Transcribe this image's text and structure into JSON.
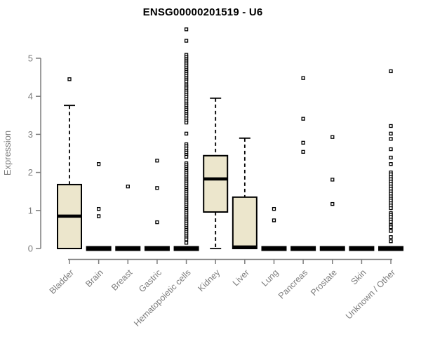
{
  "chart_data": {
    "type": "boxplot",
    "title": "ENSG00000201519 - U6",
    "ylabel": "Expression",
    "xlabel": "",
    "ylim": [
      0,
      5
    ],
    "yticks": [
      0,
      1,
      2,
      3,
      4,
      5
    ],
    "grid": false,
    "legend": "none",
    "colors": {
      "box_fill": "#ECE6CC",
      "box_border": "#000000",
      "median": "#000000",
      "axis": "#7D7D7D",
      "tick_label": "#7D7D7D",
      "title": "#000000",
      "outlier_fill": "#FFFFFF",
      "outlier_border": "#000000"
    },
    "categories": [
      {
        "label": "Bladder",
        "min": 0,
        "q1": 0,
        "median": 0.85,
        "q3": 1.68,
        "max": 3.76,
        "outliers": [
          4.45
        ]
      },
      {
        "label": "Brain",
        "min": 0,
        "q1": 0,
        "median": 0,
        "q3": 0,
        "max": 0,
        "outliers": [
          2.22,
          1.04,
          0.85
        ]
      },
      {
        "label": "Breast",
        "min": 0,
        "q1": 0,
        "median": 0,
        "q3": 0,
        "max": 0,
        "outliers": [
          1.63
        ]
      },
      {
        "label": "Gastric",
        "min": 0,
        "q1": 0,
        "median": 0,
        "q3": 0,
        "max": 0,
        "outliers": [
          2.31,
          1.59,
          0.69
        ]
      },
      {
        "label": "Hematopoietic cells",
        "min": 0,
        "q1": 0,
        "median": 0,
        "q3": 0,
        "max": 0,
        "outliers": [
          5.76,
          5.46,
          5.09,
          5.04,
          4.99,
          4.94,
          4.89,
          4.84,
          4.79,
          4.74,
          4.69,
          4.64,
          4.59,
          4.54,
          4.49,
          4.44,
          4.39,
          4.31,
          4.26,
          4.21,
          4.15,
          4.1,
          4.04,
          3.99,
          3.93,
          3.87,
          3.81,
          3.76,
          3.7,
          3.65,
          3.59,
          3.53,
          3.48,
          3.42,
          3.36,
          3.31,
          3.02,
          2.74,
          2.69,
          2.63,
          2.57,
          2.52,
          2.46,
          2.41,
          2.24,
          2.19,
          2.14,
          2.09,
          2.04,
          1.99,
          1.94,
          1.89,
          1.84,
          1.79,
          1.74,
          1.69,
          1.64,
          1.59,
          1.54,
          1.49,
          1.44,
          1.39,
          1.34,
          1.29,
          1.24,
          1.19,
          1.14,
          1.09,
          1.04,
          0.99,
          0.94,
          0.89,
          0.84,
          0.79,
          0.74,
          0.69,
          0.64,
          0.59,
          0.54,
          0.49,
          0.44,
          0.39,
          0.34,
          0.29,
          0.24,
          0.15
        ]
      },
      {
        "label": "Kidney",
        "min": 0,
        "q1": 0.96,
        "median": 1.83,
        "q3": 2.44,
        "max": 3.95,
        "outliers": []
      },
      {
        "label": "Liver",
        "min": 0,
        "q1": 0,
        "median": 0.04,
        "q3": 1.35,
        "max": 2.9,
        "outliers": []
      },
      {
        "label": "Lung",
        "min": 0,
        "q1": 0,
        "median": 0,
        "q3": 0,
        "max": 0,
        "outliers": [
          1.04,
          0.74
        ]
      },
      {
        "label": "Pancreas",
        "min": 0,
        "q1": 0,
        "median": 0,
        "q3": 0,
        "max": 0,
        "outliers": [
          4.48,
          3.41,
          2.78,
          2.54
        ]
      },
      {
        "label": "Prostate",
        "min": 0,
        "q1": 0,
        "median": 0,
        "q3": 0,
        "max": 0,
        "outliers": [
          2.93,
          1.81,
          1.17
        ]
      },
      {
        "label": "Skin",
        "min": 0,
        "q1": 0,
        "median": 0,
        "q3": 0,
        "max": 0,
        "outliers": []
      },
      {
        "label": "Unknown / Other",
        "min": 0,
        "q1": 0,
        "median": 0,
        "q3": 0,
        "max": 0,
        "outliers": [
          4.66,
          3.22,
          3.02,
          2.88,
          2.61,
          2.39,
          2.22,
          2.0,
          1.95,
          1.88,
          1.82,
          1.76,
          1.7,
          1.63,
          1.57,
          1.5,
          1.44,
          1.37,
          1.31,
          1.26,
          1.19,
          1.13,
          1.06,
          0.93,
          0.88,
          0.83,
          0.76,
          0.7,
          0.61,
          0.56,
          0.46,
          0.3,
          0.19
        ]
      }
    ]
  }
}
